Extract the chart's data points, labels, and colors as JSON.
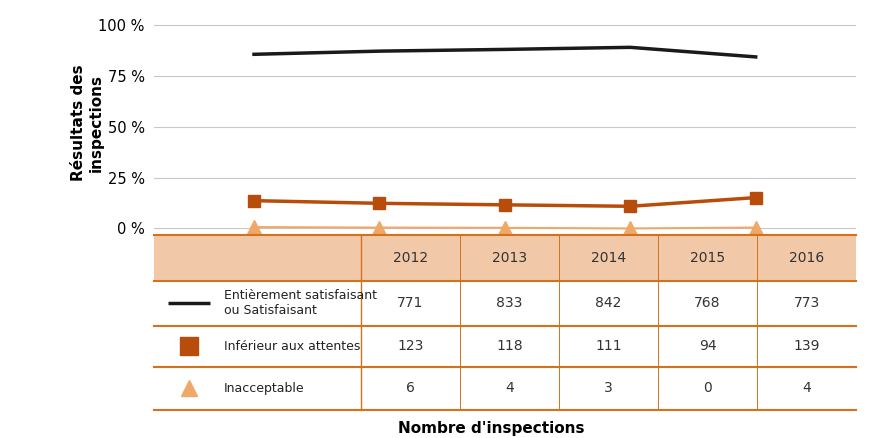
{
  "years": [
    2012,
    2013,
    2014,
    2015,
    2016
  ],
  "satisfaisant": [
    85.67,
    87.23,
    88.08,
    89.1,
    84.39
  ],
  "inferieur": [
    13.67,
    12.36,
    11.61,
    10.9,
    15.18
  ],
  "inacceptable": [
    0.67,
    0.42,
    0.31,
    0.0,
    0.44
  ],
  "sat_counts": [
    771,
    833,
    842,
    768,
    773
  ],
  "inf_counts": [
    123,
    118,
    111,
    94,
    139
  ],
  "inac_counts": [
    6,
    4,
    3,
    0,
    4
  ],
  "color_black": "#1a1a1a",
  "color_orange": "#B84C0A",
  "color_light_orange": "#F0A868",
  "color_table_header": "#F2C9A8",
  "color_table_bg": "#FFFFFF",
  "color_table_border": "#D4721A",
  "color_grid": "#c8c8c8",
  "ylabel": "Résultats des\ninspections",
  "xlabel": "Nombre d'inspections",
  "legend_sat": "Entièrement satisfaisant\nou Satisfaisant",
  "legend_inf": "Inférieur aux attentes",
  "legend_inac": "Inacceptable",
  "yticks": [
    0,
    25,
    50,
    75,
    100
  ],
  "ytick_labels": [
    "0 %",
    "25 %",
    "50 %",
    "75 %",
    "100 %"
  ]
}
